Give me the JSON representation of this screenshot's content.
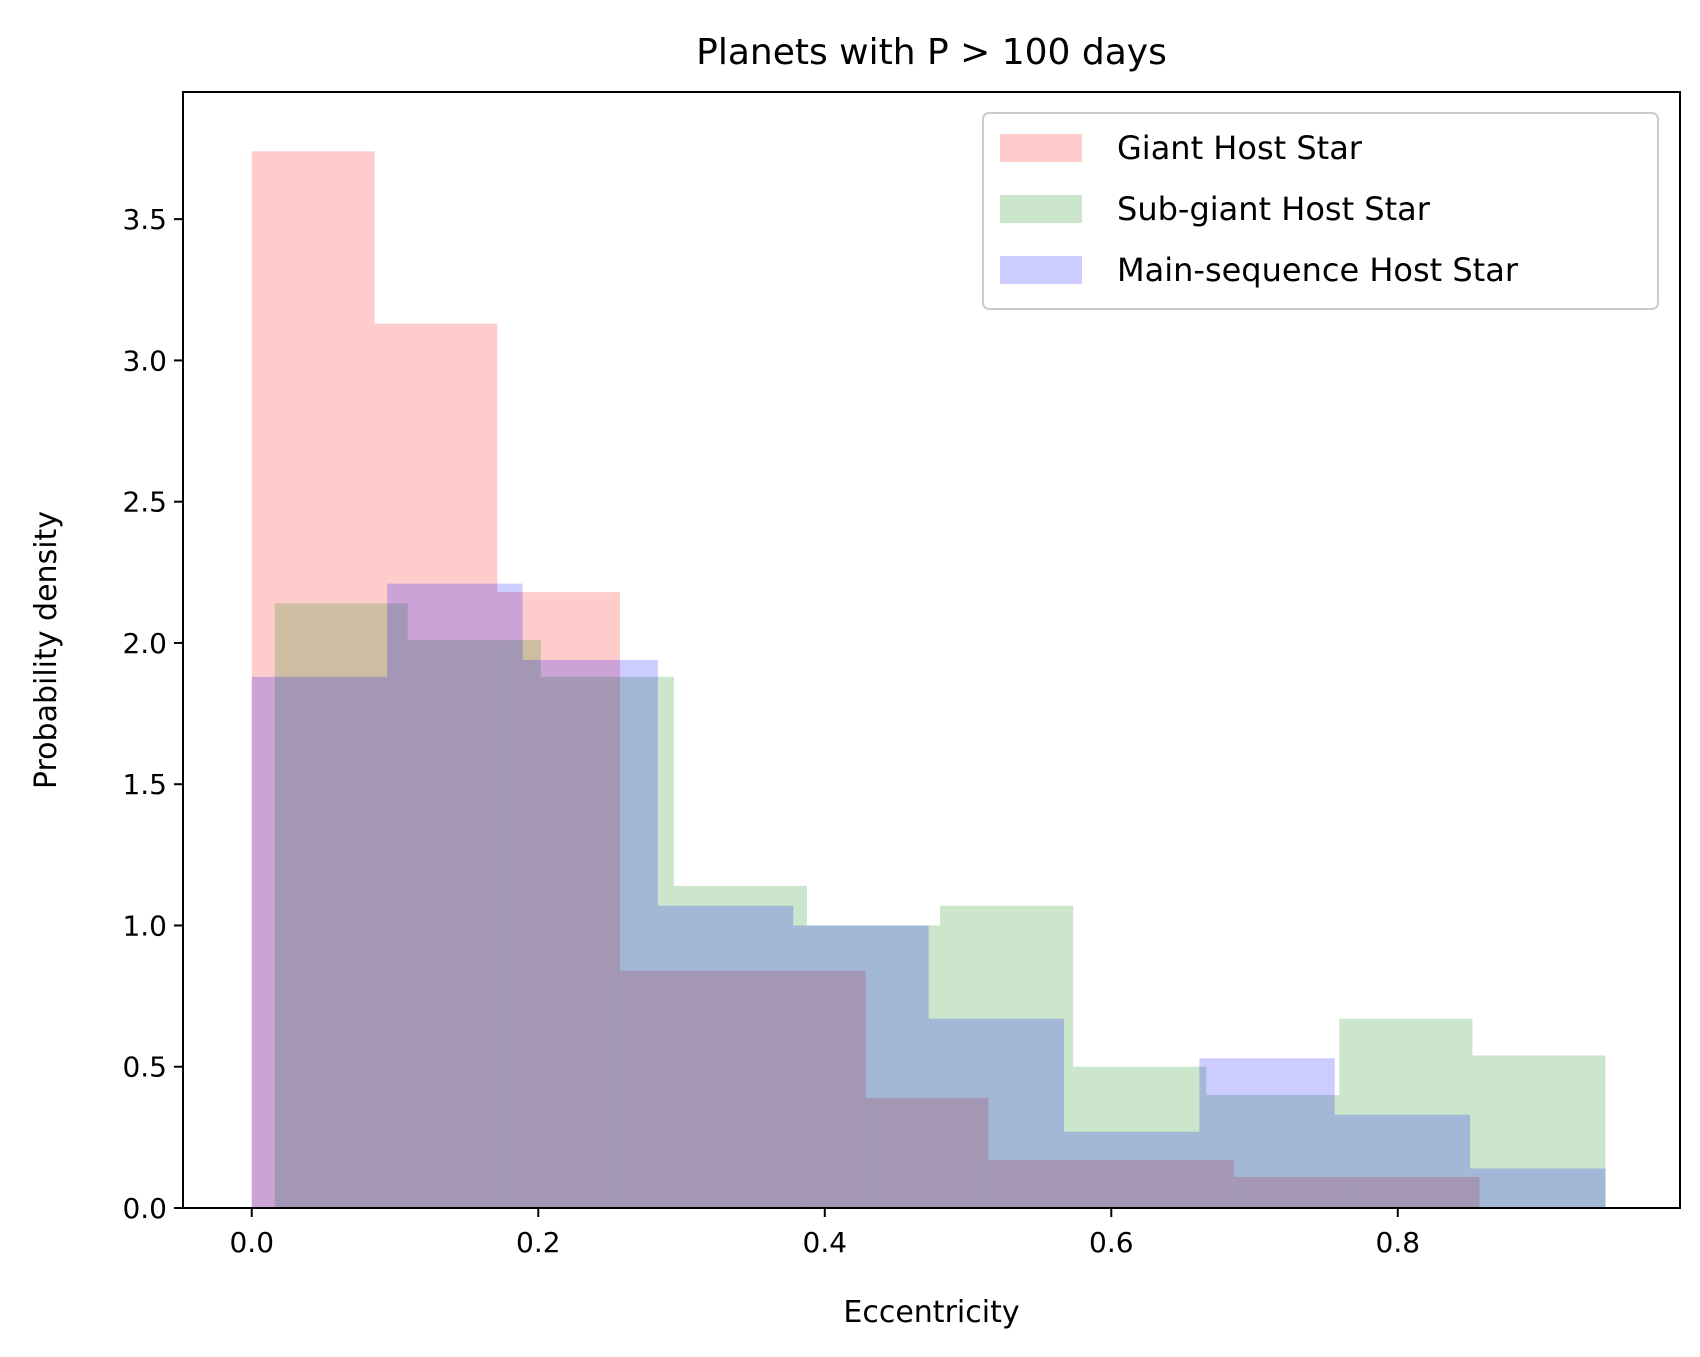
{
  "chart_data": {
    "type": "histogram",
    "title": "Planets with P > 100 days",
    "xlabel": "Eccentricity",
    "ylabel": "Probability density",
    "xlim": [
      -0.048,
      0.997
    ],
    "ylim": [
      0,
      3.95
    ],
    "xticks": [
      0.0,
      0.2,
      0.4,
      0.6,
      0.8
    ],
    "xtick_labels": [
      "0.0",
      "0.2",
      "0.4",
      "0.6",
      "0.8"
    ],
    "yticks": [
      0.0,
      0.5,
      1.0,
      1.5,
      2.0,
      2.5,
      3.0,
      3.5
    ],
    "ytick_labels": [
      "0.0",
      "0.5",
      "1.0",
      "1.5",
      "2.0",
      "2.5",
      "3.0",
      "3.5"
    ],
    "legend_position": "top-right",
    "grid": false,
    "series": [
      {
        "name": "Giant Host Star",
        "color": "#ff0000",
        "alpha": 0.2,
        "bin_edges": [
          0.0,
          0.0857,
          0.1714,
          0.2571,
          0.3428,
          0.4285,
          0.5142,
          0.5999,
          0.6856,
          0.7713,
          0.857
        ],
        "values": [
          3.74,
          3.13,
          2.18,
          0.84,
          0.84,
          0.39,
          0.17,
          0.17,
          0.11,
          0.11
        ]
      },
      {
        "name": "Sub-giant Host Star",
        "color": "#008000",
        "alpha": 0.2,
        "bin_edges": [
          0.016,
          0.1089,
          0.2018,
          0.2947,
          0.3876,
          0.4805,
          0.5734,
          0.6663,
          0.7592,
          0.8521,
          0.945
        ],
        "values": [
          2.14,
          2.01,
          1.88,
          1.14,
          1.0,
          1.07,
          0.5,
          0.4,
          0.67,
          0.54
        ]
      },
      {
        "name": "Main-sequence Host Star",
        "color": "#0000ff",
        "alpha": 0.2,
        "bin_edges": [
          0.0,
          0.0945,
          0.189,
          0.2835,
          0.378,
          0.4725,
          0.567,
          0.6615,
          0.756,
          0.8505,
          0.945
        ],
        "values": [
          1.88,
          2.21,
          1.94,
          1.07,
          1.0,
          0.67,
          0.27,
          0.53,
          0.33,
          0.14
        ]
      }
    ]
  }
}
